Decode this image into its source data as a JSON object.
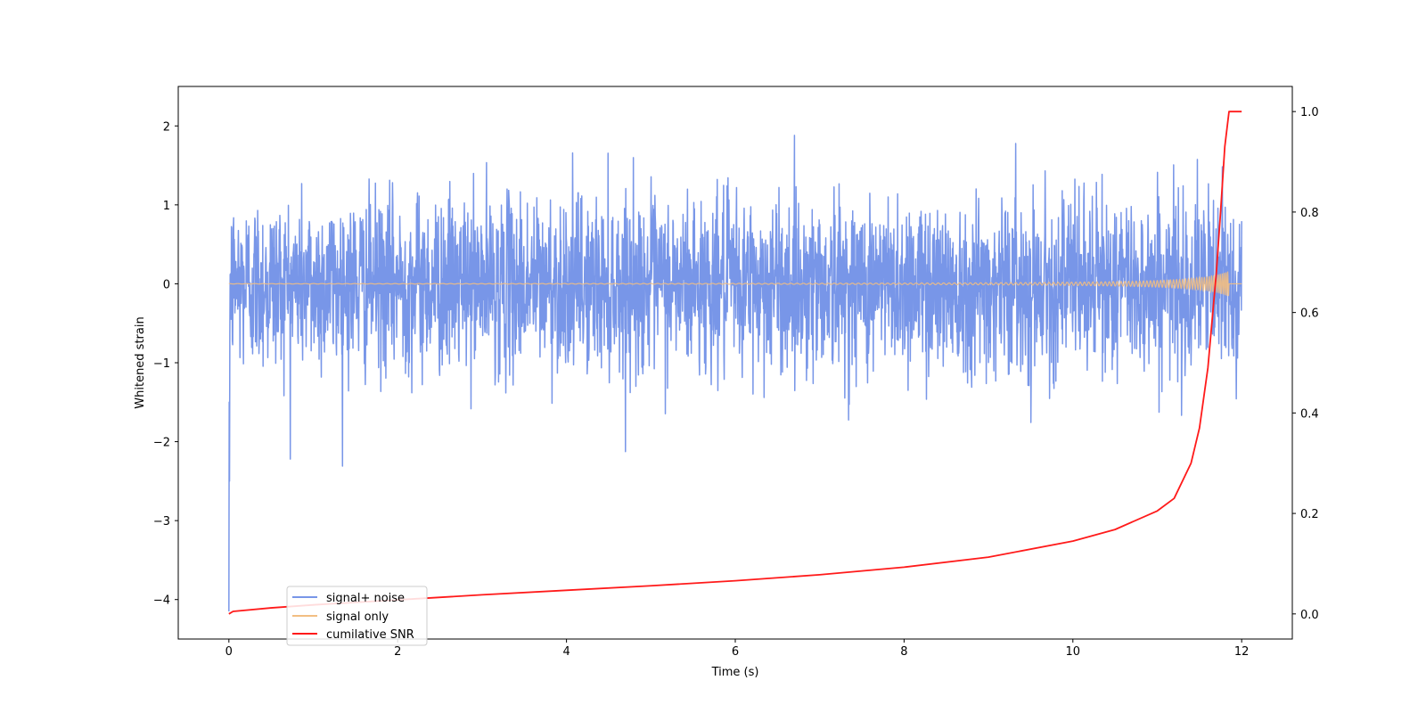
{
  "chart_data": {
    "type": "line",
    "title": "",
    "xlabel": "Time (s)",
    "ylabel": "Whitened strain",
    "y2label": "",
    "xlim": [
      -0.6,
      12.6
    ],
    "ylim": [
      -4.5,
      2.5
    ],
    "y2lim": [
      -0.05,
      1.05
    ],
    "xticks": [
      0,
      2,
      4,
      6,
      8,
      10,
      12
    ],
    "yticks": [
      -4,
      -3,
      -2,
      -1,
      0,
      1,
      2
    ],
    "y2ticks": [
      0.0,
      0.2,
      0.4,
      0.6,
      0.8,
      1.0
    ],
    "xtick_labels": [
      "0",
      "2",
      "4",
      "6",
      "8",
      "10",
      "12"
    ],
    "ytick_labels": [
      "−4",
      "−3",
      "−2",
      "−1",
      "0",
      "1",
      "2"
    ],
    "y2tick_labels": [
      "0.0",
      "0.2",
      "0.4",
      "0.6",
      "0.8",
      "1.0"
    ],
    "grid": false,
    "legend_position": "lower-left",
    "series": [
      {
        "name": "signal+ noise",
        "axis": "left",
        "color": "#7896e8",
        "description_range": [
          -2.2,
          2.2
        ],
        "x_range": [
          0,
          12
        ]
      },
      {
        "name": "signal only",
        "axis": "left",
        "color": "#f2be82",
        "x_range": [
          0,
          12
        ]
      },
      {
        "name": "cumilative SNR",
        "axis": "right",
        "color": "#ff1a1a",
        "x": [
          0,
          0.05,
          0.5,
          1,
          2,
          3,
          4,
          5,
          6,
          7,
          8,
          9,
          10,
          10.5,
          11,
          11.2,
          11.4,
          11.5,
          11.6,
          11.7,
          11.75,
          11.8,
          11.85,
          12
        ],
        "y": [
          0.0,
          0.005,
          0.012,
          0.018,
          0.028,
          0.038,
          0.047,
          0.056,
          0.066,
          0.078,
          0.093,
          0.113,
          0.145,
          0.168,
          0.205,
          0.23,
          0.3,
          0.37,
          0.49,
          0.68,
          0.8,
          0.93,
          1.0,
          1.0
        ]
      }
    ]
  }
}
